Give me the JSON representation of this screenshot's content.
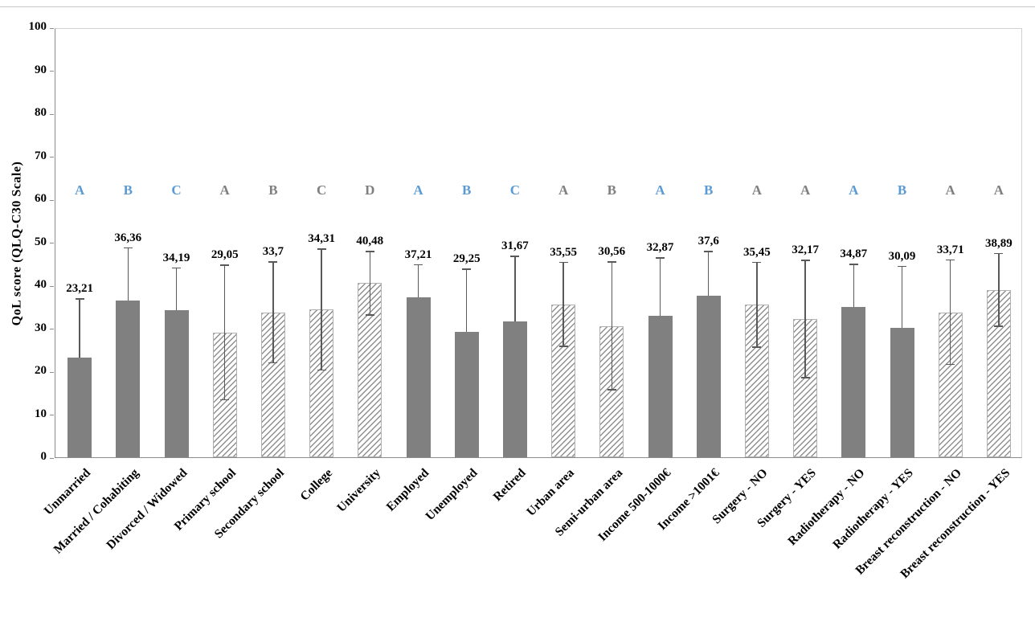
{
  "figure": {
    "y_axis_title": "QoL score (QLQ-C30  Scale)",
    "colors": {
      "solid_bar": "#808080",
      "hatch_line": "#8f8f8f",
      "error_bar": "#595959",
      "letter_blue": "#5b9bd5",
      "letter_gray": "#7f7f7f",
      "axis": "#8c8c8c"
    }
  },
  "chart_data": {
    "type": "bar",
    "title": "",
    "xlabel": "",
    "ylabel": "QoL score (QLQ-C30  Scale)",
    "ylim": [
      0,
      100
    ],
    "y_ticks": [
      0,
      10,
      20,
      30,
      40,
      50,
      60,
      70,
      80,
      90,
      100
    ],
    "grid": false,
    "legend": "none",
    "categories": [
      "Unmarried",
      "Married / Cohabiting",
      "Divorced / Widowed",
      "Primary school",
      "Secondary school",
      "College",
      "University",
      "Employed",
      "Unemployed",
      "Retired",
      "Urban area",
      "Semi-urban area",
      "Income 500-1000€",
      "Income >1001€",
      "Surgery - NO",
      "Surgery - YES",
      "Radiotherapy - NO",
      "Radiotherapy - YES",
      "Breast reconstruction - NO",
      "Breast reconstruction - YES"
    ],
    "values": [
      23.21,
      36.36,
      34.19,
      29.05,
      33.7,
      34.31,
      40.48,
      37.21,
      29.25,
      31.67,
      35.55,
      30.56,
      32.87,
      37.6,
      35.45,
      32.17,
      34.87,
      30.09,
      33.71,
      38.89
    ],
    "value_labels": [
      "23,21",
      "36,36",
      "34,19",
      "29,05",
      "33,7",
      "34,31",
      "40,48",
      "37,21",
      "29,25",
      "31,67",
      "35,55",
      "30,56",
      "32,87",
      "37,6",
      "35,45",
      "32,17",
      "34,87",
      "30,09",
      "33,71",
      "38,89"
    ],
    "errors": [
      13.8,
      12.5,
      10.0,
      15.8,
      11.9,
      14.2,
      7.5,
      7.7,
      14.6,
      15.2,
      9.9,
      15.0,
      13.6,
      10.4,
      10.0,
      13.8,
      10.1,
      14.4,
      12.3,
      8.6
    ],
    "letters": [
      "A",
      "B",
      "C",
      "A",
      "B",
      "C",
      "D",
      "A",
      "B",
      "C",
      "A",
      "B",
      "A",
      "B",
      "A",
      "A",
      "A",
      "B",
      "A",
      "A"
    ],
    "letter_colors": [
      "blue",
      "blue",
      "blue",
      "gray",
      "gray",
      "gray",
      "gray",
      "blue",
      "blue",
      "blue",
      "gray",
      "gray",
      "blue",
      "blue",
      "gray",
      "gray",
      "blue",
      "blue",
      "gray",
      "gray"
    ],
    "bar_styles": [
      "solid",
      "solid",
      "solid",
      "hatch",
      "hatch",
      "hatch",
      "hatch",
      "solid",
      "solid",
      "solid",
      "hatch",
      "hatch",
      "solid",
      "solid",
      "hatch",
      "hatch",
      "solid",
      "solid",
      "hatch",
      "hatch"
    ],
    "letters_y_position": 62
  }
}
